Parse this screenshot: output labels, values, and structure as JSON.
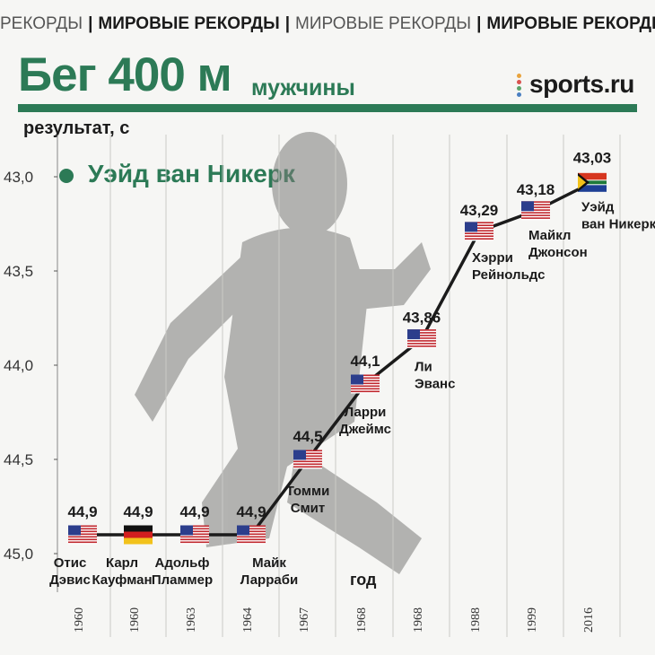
{
  "ticker": {
    "items": [
      "РЕКОРДЫ",
      "МИРОВЫЕ РЕКОРДЫ",
      "МИРОВЫЕ РЕКОРДЫ",
      "МИРОВЫЕ РЕКОРДЫ"
    ]
  },
  "header": {
    "title": "Бег 400 м",
    "subtitle": "мужчины",
    "logo": "sports.ru"
  },
  "colors": {
    "accent": "#2c7a56",
    "line": "#1b1b1b",
    "background": "#f6f6f4"
  },
  "chart_data": {
    "type": "line",
    "ylabel": "результат, с",
    "xlabel": "год",
    "ylim": [
      43.0,
      45.0
    ],
    "y_inverted": true,
    "y_ticks": [
      "43,0",
      "43,5",
      "44,0",
      "44,5",
      "45,0"
    ],
    "legend": "Уэйд ван Никерк",
    "grid": "vertical",
    "x": [
      "1960",
      "1960",
      "1963",
      "1964",
      "1967",
      "1968",
      "1968",
      "1988",
      "1999",
      "2016"
    ],
    "values": [
      44.9,
      44.9,
      44.9,
      44.9,
      44.5,
      44.1,
      43.86,
      43.29,
      43.18,
      43.03
    ],
    "value_labels": [
      "44,9",
      "44,9",
      "44,9",
      "44,9",
      "44,5",
      "44,1",
      "43,86",
      "43,29",
      "43,18",
      "43,03"
    ],
    "athletes": [
      {
        "name": [
          "Отис",
          "Дэвис"
        ],
        "flag": "usa"
      },
      {
        "name": [
          "Карл",
          "Кауфман"
        ],
        "flag": "germany"
      },
      {
        "name": [
          "Адольф",
          "Пламмер"
        ],
        "flag": "usa"
      },
      {
        "name": [
          "Майк",
          "Ларраби"
        ],
        "flag": "usa"
      },
      {
        "name": [
          "Томми",
          "Смит"
        ],
        "flag": "usa"
      },
      {
        "name": [
          "Ларри",
          "Джеймс"
        ],
        "flag": "usa"
      },
      {
        "name": [
          "Ли",
          "Эванс"
        ],
        "flag": "usa"
      },
      {
        "name": [
          "Хэрри",
          "Рейнольдс"
        ],
        "flag": "usa"
      },
      {
        "name": [
          "Майкл",
          "Джонсон"
        ],
        "flag": "usa"
      },
      {
        "name": [
          "Уэйд",
          "ван Никерк"
        ],
        "flag": "south-africa"
      }
    ]
  }
}
